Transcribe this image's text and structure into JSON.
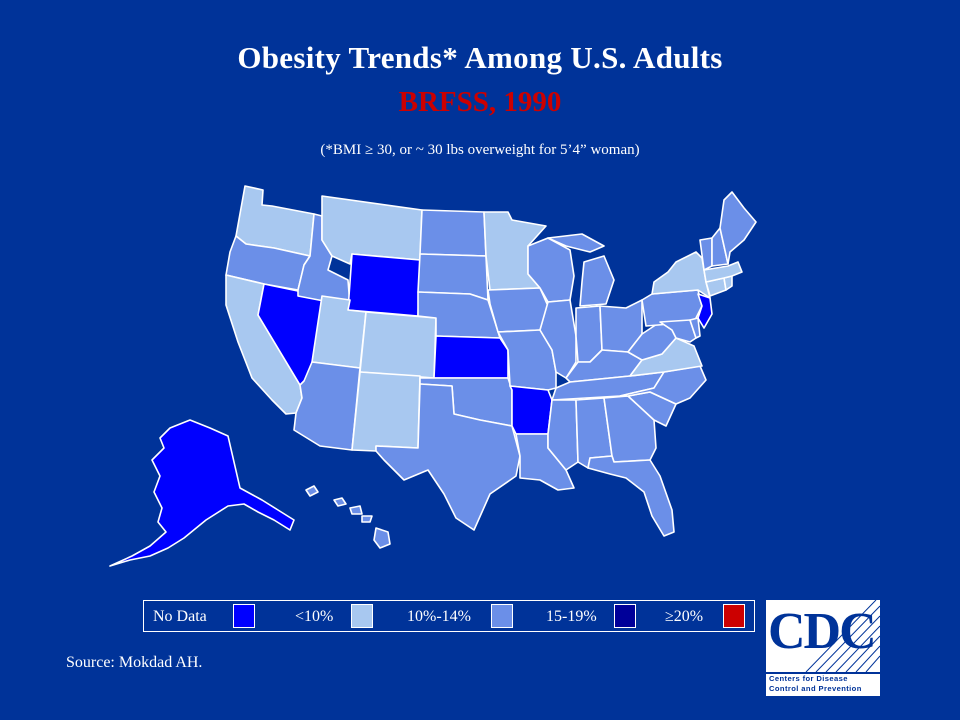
{
  "title": "Obesity Trends* Among U.S. Adults",
  "subtitle": "BRFSS, 1990",
  "note": "(*BMI ≥ 30, or ~ 30 lbs overweight for 5’4” woman)",
  "colors": {
    "background": "#003399",
    "no_data": "#0000ff",
    "lt10": "#a8c8f0",
    "p10_14": "#6b8fe8",
    "p15_19": "#000099",
    "ge20": "#cc0000",
    "subtitle": "#cc0000",
    "border": "#ffffff"
  },
  "legend": [
    {
      "label": "No Data",
      "category": "no_data"
    },
    {
      "label": "<10%",
      "category": "lt10"
    },
    {
      "label": "10%-14%",
      "category": "p10_14"
    },
    {
      "label": "15-19%",
      "category": "p15_19"
    },
    {
      "label": "≥20%",
      "category": "ge20"
    }
  ],
  "states": {
    "WA": "lt10",
    "OR": "p10_14",
    "CA": "lt10",
    "NV": "no_data",
    "ID": "p10_14",
    "MT": "lt10",
    "WY": "no_data",
    "UT": "lt10",
    "CO": "lt10",
    "AZ": "p10_14",
    "NM": "lt10",
    "ND": "p10_14",
    "SD": "p10_14",
    "NE": "p10_14",
    "KS": "no_data",
    "OK": "p10_14",
    "TX": "p10_14",
    "MN": "lt10",
    "IA": "p10_14",
    "MO": "p10_14",
    "AR": "no_data",
    "LA": "p10_14",
    "WI": "p10_14",
    "IL": "p10_14",
    "MI": "p10_14",
    "IN": "p10_14",
    "OH": "p10_14",
    "KY": "p10_14",
    "TN": "p10_14",
    "MS": "p10_14",
    "AL": "p10_14",
    "GA": "p10_14",
    "FL": "p10_14",
    "SC": "p10_14",
    "NC": "p10_14",
    "VA": "lt10",
    "WV": "p10_14",
    "MD": "p10_14",
    "DE": "p10_14",
    "PA": "p10_14",
    "NJ": "no_data",
    "NY": "lt10",
    "CT": "lt10",
    "RI": "lt10",
    "MA": "lt10",
    "VT": "p10_14",
    "NH": "p10_14",
    "ME": "p10_14",
    "AK": "no_data",
    "HI": "p10_14"
  },
  "source": "Source: Mokdad AH.",
  "logo": {
    "word": "CDC",
    "line1": "Centers for Disease",
    "line2": "Control and Prevention"
  }
}
